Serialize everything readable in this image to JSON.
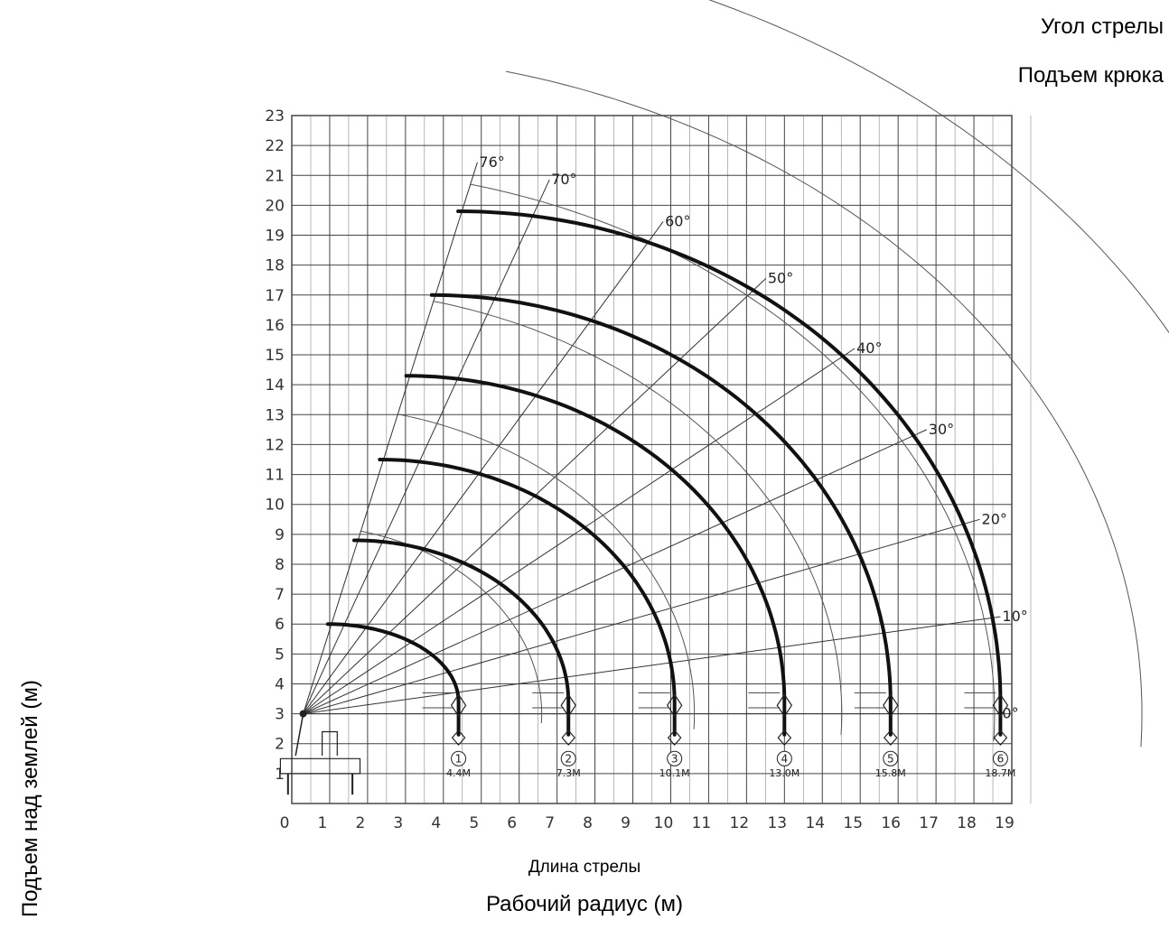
{
  "chart_data": {
    "type": "line",
    "legend": {
      "angle_label": "Угол стрелы",
      "hook_label": "Подъем крюка"
    },
    "xlabel": "Рабочий радиус (м)",
    "boom_length_label": "Длина стрелы",
    "ylabel": "Подъем над землей (м)",
    "xlim": [
      0,
      19
    ],
    "ylim": [
      0,
      23
    ],
    "x_ticks": [
      "0",
      "1",
      "2",
      "3",
      "4",
      "5",
      "6",
      "7",
      "8",
      "9",
      "10",
      "11",
      "12",
      "13",
      "14",
      "15",
      "16",
      "17",
      "18",
      "19"
    ],
    "y_ticks": [
      "1",
      "2",
      "3",
      "4",
      "5",
      "6",
      "7",
      "8",
      "9",
      "10",
      "11",
      "12",
      "13",
      "14",
      "15",
      "16",
      "17",
      "18",
      "19",
      "20",
      "21",
      "22",
      "23"
    ],
    "pivot": [
      0.3,
      3.0
    ],
    "angles": [
      {
        "deg": 0,
        "label": "0°"
      },
      {
        "deg": 10,
        "label": "10°"
      },
      {
        "deg": 20,
        "label": "20°"
      },
      {
        "deg": 30,
        "label": "30°"
      },
      {
        "deg": 40,
        "label": "40°"
      },
      {
        "deg": 50,
        "label": "50°"
      },
      {
        "deg": 60,
        "label": "60°"
      },
      {
        "deg": 70,
        "label": "70°"
      },
      {
        "deg": 76,
        "label": "76°"
      }
    ],
    "series": [
      {
        "name": "1",
        "boom_length_label": "4.4M",
        "radius": 4.4,
        "hook_top": 6.0
      },
      {
        "name": "2",
        "boom_length_label": "7.3M",
        "radius": 7.3,
        "hook_top": 8.8
      },
      {
        "name": "3",
        "boom_length_label": "10.1M",
        "radius": 10.1,
        "hook_top": 11.5
      },
      {
        "name": "4",
        "boom_length_label": "13.0M",
        "radius": 13.0,
        "hook_top": 14.3
      },
      {
        "name": "5",
        "boom_length_label": "15.8M",
        "radius": 15.8,
        "hook_top": 17.0
      },
      {
        "name": "6",
        "boom_length_label": "18.7M",
        "radius": 18.7,
        "hook_top": 19.8
      }
    ],
    "grid": true
  }
}
